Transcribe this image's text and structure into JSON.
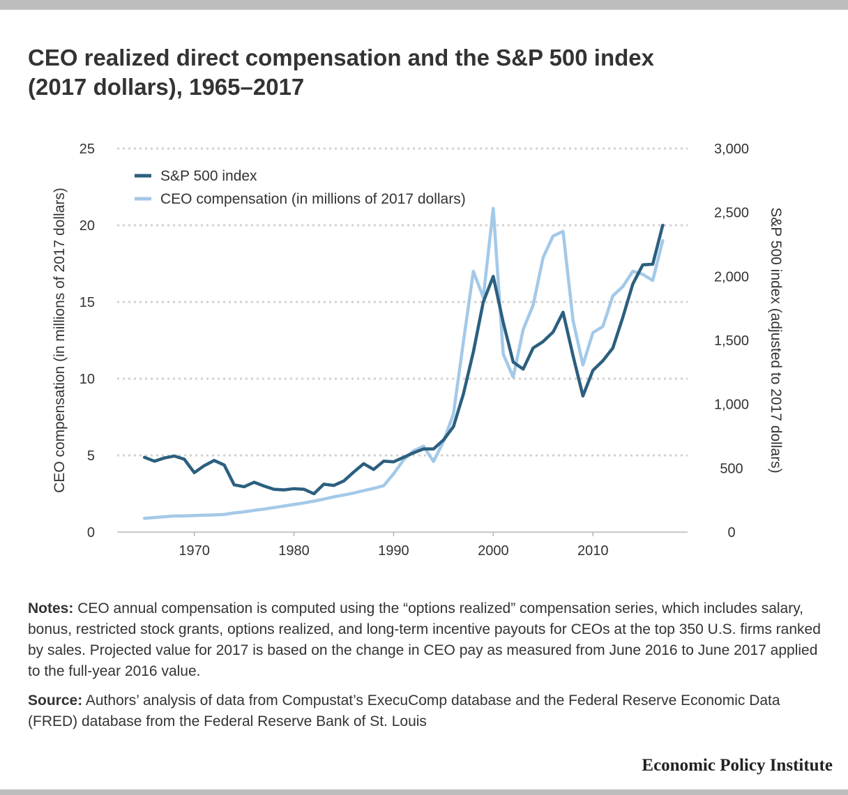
{
  "title_line1": "CEO realized direct compensation and the S&P 500 index",
  "title_line2": "(2017 dollars), 1965–2017",
  "notes": {
    "notes_label": "Notes:",
    "notes_text": "CEO annual compensation is computed using the “options realized” compensation series, which includes salary, bonus, restricted stock grants, options realized, and long-term incentive payouts for CEOs at the top 350 U.S. firms ranked by sales. Projected value for 2017 is based on the change in CEO pay as measured from June 2016 to June 2017 applied to the full-year 2016 value.",
    "source_label": "Source:",
    "source_text": "Authors’ analysis of data from Compustat’s ExecuComp database and the Federal Reserve Economic Data (FRED) database from the Federal Reserve Bank of St. Louis"
  },
  "brand": "Economic Policy Institute",
  "chart_data": {
    "type": "line",
    "title": "CEO realized direct compensation and the S&P 500 index (2017 dollars), 1965–2017",
    "x": [
      1965,
      1966,
      1967,
      1968,
      1969,
      1970,
      1971,
      1972,
      1973,
      1974,
      1975,
      1976,
      1977,
      1978,
      1979,
      1980,
      1981,
      1982,
      1983,
      1984,
      1985,
      1986,
      1987,
      1988,
      1989,
      1990,
      1991,
      1992,
      1993,
      1994,
      1995,
      1996,
      1997,
      1998,
      1999,
      2000,
      2001,
      2002,
      2003,
      2004,
      2005,
      2006,
      2007,
      2008,
      2009,
      2010,
      2011,
      2012,
      2013,
      2014,
      2015,
      2016,
      2017
    ],
    "xticks": [
      1970,
      1980,
      1990,
      2000,
      2010
    ],
    "xlim": [
      1960.3,
      2019.5
    ],
    "y_left": {
      "label": "CEO compensation (in millions of 2017 dollars)",
      "lim": [
        0,
        25
      ],
      "ticks": [
        "0",
        "5",
        "10",
        "15",
        "20",
        "25"
      ],
      "tick_values": [
        0,
        5,
        10,
        15,
        20,
        25
      ]
    },
    "y_right": {
      "label": "S&P 500 index (adjusted to 2017 dollars)",
      "lim": [
        0,
        3000
      ],
      "ticks": [
        "0",
        "500",
        "1,000",
        "1,500",
        "2,000",
        "2,500",
        "3,000"
      ],
      "tick_values": [
        0,
        500,
        1000,
        1500,
        2000,
        2500,
        3000
      ]
    },
    "grid": true,
    "legend_position": "top-left",
    "series": [
      {
        "name": "S&P 500 index",
        "axis": "right",
        "color": "#2c5f7f",
        "values": [
          585,
          555,
          580,
          595,
          570,
          465,
          520,
          560,
          525,
          370,
          355,
          390,
          360,
          335,
          330,
          340,
          335,
          300,
          375,
          365,
          400,
          470,
          535,
          490,
          555,
          550,
          585,
          620,
          650,
          650,
          720,
          825,
          1080,
          1410,
          1800,
          2000,
          1640,
          1330,
          1275,
          1440,
          1490,
          1565,
          1720,
          1380,
          1065,
          1265,
          1340,
          1440,
          1680,
          1940,
          2090,
          2095,
          2400
        ]
      },
      {
        "name": "CEO compensation (in millions of 2017 dollars)",
        "axis": "left",
        "color": "#a3c9e8",
        "values": [
          0.9,
          0.95,
          1.0,
          1.05,
          1.06,
          1.08,
          1.1,
          1.12,
          1.15,
          1.25,
          1.32,
          1.42,
          1.5,
          1.6,
          1.7,
          1.8,
          1.9,
          2.02,
          2.15,
          2.3,
          2.42,
          2.55,
          2.7,
          2.85,
          3.02,
          3.8,
          4.7,
          5.3,
          5.6,
          4.6,
          5.9,
          7.7,
          12.4,
          17.0,
          15.3,
          21.1,
          11.6,
          10.1,
          13.2,
          14.8,
          17.9,
          19.3,
          19.6,
          13.8,
          10.9,
          13.0,
          13.4,
          15.4,
          16.0,
          17.0,
          16.8,
          16.4,
          19.0
        ]
      }
    ]
  }
}
